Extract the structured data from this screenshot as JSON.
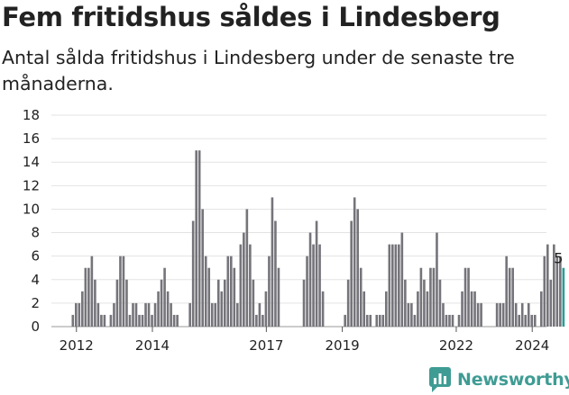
{
  "title": "Fem fritidshus såldes i Lindesberg",
  "subtitle": "Antal sålda fritidshus i Lindesberg under de senaste tre månaderna.",
  "brand": {
    "name": "Newsworthy",
    "icon": "newsworthy-logo-icon",
    "color": "#3f9c94"
  },
  "chart_data": {
    "type": "bar",
    "title": "Fem fritidshus såldes i Lindesberg",
    "subtitle": "Antal sålda fritidshus i Lindesberg under de senaste tre månaderna.",
    "xlabel": "",
    "ylabel": "",
    "ylim": [
      0,
      18
    ],
    "yticks": [
      0,
      2,
      4,
      6,
      8,
      10,
      12,
      14,
      16,
      18
    ],
    "grid": true,
    "bar_color": "#75747a",
    "highlight_color": "#2a9d94",
    "x_ticks": [
      {
        "label": "2012",
        "index": 1
      },
      {
        "label": "2014",
        "index": 25
      },
      {
        "label": "2017",
        "index": 61
      },
      {
        "label": "2019",
        "index": 85
      },
      {
        "label": "2022",
        "index": 121
      },
      {
        "label": "2024",
        "index": 145
      }
    ],
    "values": [
      1,
      2,
      2,
      3,
      5,
      5,
      6,
      4,
      2,
      1,
      1,
      0,
      1,
      2,
      4,
      6,
      6,
      4,
      1,
      2,
      2,
      1,
      1,
      2,
      2,
      1,
      2,
      3,
      4,
      5,
      3,
      2,
      1,
      1,
      0,
      0,
      0,
      2,
      9,
      15,
      15,
      10,
      6,
      5,
      2,
      2,
      4,
      3,
      4,
      6,
      6,
      5,
      2,
      7,
      8,
      10,
      7,
      4,
      1,
      2,
      1,
      3,
      6,
      11,
      9,
      5,
      0,
      0,
      0,
      0,
      0,
      0,
      0,
      4,
      6,
      8,
      7,
      9,
      7,
      3,
      0,
      0,
      0,
      0,
      0,
      0,
      1,
      4,
      9,
      11,
      10,
      5,
      3,
      1,
      1,
      0,
      1,
      1,
      1,
      3,
      7,
      7,
      7,
      7,
      8,
      4,
      2,
      2,
      1,
      3,
      5,
      4,
      3,
      5,
      5,
      8,
      4,
      2,
      1,
      1,
      1,
      0,
      1,
      3,
      5,
      5,
      3,
      3,
      2,
      2,
      0,
      0,
      0,
      0,
      2,
      2,
      2,
      6,
      5,
      5,
      2,
      1,
      2,
      1,
      2,
      1,
      1,
      0,
      3,
      6,
      7,
      4,
      7,
      6,
      6,
      5
    ],
    "last_value_label": "5"
  }
}
